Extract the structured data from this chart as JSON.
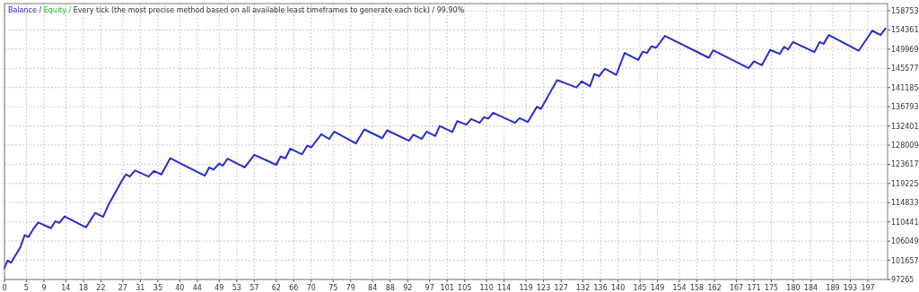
{
  "chart_data": {
    "type": "line",
    "title": "Balance / Equity / Every tick (the most precise method based on all available least timeframes to generate each tick) / 99.90%",
    "x": [
      0,
      0.7,
      1.5,
      3.6,
      4.6,
      5.5,
      6.5,
      7.7,
      10.6,
      11.6,
      12.5,
      13.7,
      18.6,
      20.7,
      22.5,
      23.8,
      26.7,
      27.7,
      28.6,
      29.8,
      32.9,
      34.1,
      35.8,
      37.8,
      45.7,
      46.7,
      47.7,
      49.0,
      49.8,
      50.9,
      54.8,
      57.0,
      62.0,
      63.0,
      64.1,
      65.2,
      67.9,
      69.1,
      70.0,
      72.3,
      74.1,
      75.2,
      80.2,
      82.1,
      86.2,
      87.3,
      92.3,
      93.3,
      95.2,
      96.3,
      98.3,
      99.3,
      102.2,
      103.3,
      105.4,
      106.5,
      108.4,
      109.4,
      110.4,
      111.5,
      116.5,
      117.5,
      119.4,
      121.5,
      122.4,
      126.1,
      130.5,
      131.7,
      133.6,
      134.6,
      135.7,
      137.0,
      139.6,
      141.5,
      144.6,
      145.6,
      146.6,
      147.6,
      148.7,
      150.7,
      160.7,
      161.7,
      169.8,
      171.0,
      172.8,
      174.7,
      176.9,
      177.9,
      178.8,
      179.9,
      184.8,
      186.0,
      186.9,
      188.1,
      194.9,
      198.0,
      199.9,
      201.0
    ],
    "series": [
      {
        "color": "#2a2ad0",
        "values": [
          99900,
          101600,
          101100,
          104600,
          107400,
          107000,
          108700,
          110300,
          109000,
          110600,
          110200,
          111700,
          109200,
          112500,
          111600,
          114500,
          119700,
          121300,
          120800,
          122200,
          120800,
          122100,
          121300,
          125000,
          121000,
          122900,
          122400,
          123800,
          123300,
          124900,
          122900,
          125800,
          123500,
          125400,
          125000,
          127200,
          125900,
          127900,
          127500,
          130500,
          129400,
          131100,
          128400,
          131600,
          129600,
          131400,
          129000,
          130400,
          129400,
          131100,
          130100,
          132400,
          131000,
          133500,
          132700,
          134000,
          133100,
          134400,
          134100,
          135400,
          133100,
          134200,
          133300,
          136800,
          136300,
          142900,
          141200,
          142600,
          141500,
          144300,
          143800,
          145500,
          144100,
          149100,
          147500,
          149400,
          149100,
          150600,
          150300,
          153000,
          148000,
          149700,
          145600,
          147200,
          146300,
          149800,
          148900,
          150500,
          149900,
          151600,
          149300,
          151600,
          151200,
          153200,
          149600,
          154200,
          153200,
          154700
        ]
      },
      {
        "color": "#22bb22",
        "values": [
          null,
          null,
          null,
          null,
          null,
          null,
          null,
          null,
          null,
          null,
          null,
          null,
          null,
          null,
          null,
          null,
          null,
          null,
          null,
          null,
          null,
          null,
          null,
          null,
          null,
          null,
          null,
          null,
          null,
          null,
          null,
          null,
          null,
          null,
          null,
          null,
          null,
          null,
          null,
          null,
          null,
          null,
          null,
          null,
          null,
          null,
          null,
          null,
          null,
          null,
          null,
          null,
          null,
          null,
          null,
          null,
          null,
          null,
          null,
          null,
          null,
          null,
          null,
          null,
          null,
          null,
          null,
          null,
          null,
          null,
          null,
          null,
          null,
          null,
          null,
          null,
          null,
          null,
          null,
          null,
          null,
          null,
          null,
          null,
          null,
          null,
          null,
          null,
          null,
          null,
          null,
          null,
          null,
          null,
          null,
          null,
          null,
          null
        ]
      }
    ],
    "xlim": [
      0,
      201.5
    ],
    "xticks": [
      0,
      5,
      9,
      14,
      18,
      22,
      27,
      31,
      35,
      40,
      44,
      49,
      53,
      57,
      62,
      66,
      70,
      75,
      79,
      84,
      88,
      92,
      97,
      101,
      105,
      110,
      114,
      119,
      123,
      127,
      132,
      136,
      140,
      145,
      149,
      154,
      158,
      162,
      167,
      171,
      175,
      180,
      184,
      189,
      193,
      197
    ],
    "ylim": [
      97265,
      160400
    ],
    "yticks": [
      97265,
      101657,
      106049,
      110441,
      114833,
      119225,
      123617,
      128009,
      132401,
      136793,
      141185,
      145577,
      149969,
      154361,
      158753
    ],
    "grid": true,
    "line_style": "solid",
    "marker": "none"
  }
}
